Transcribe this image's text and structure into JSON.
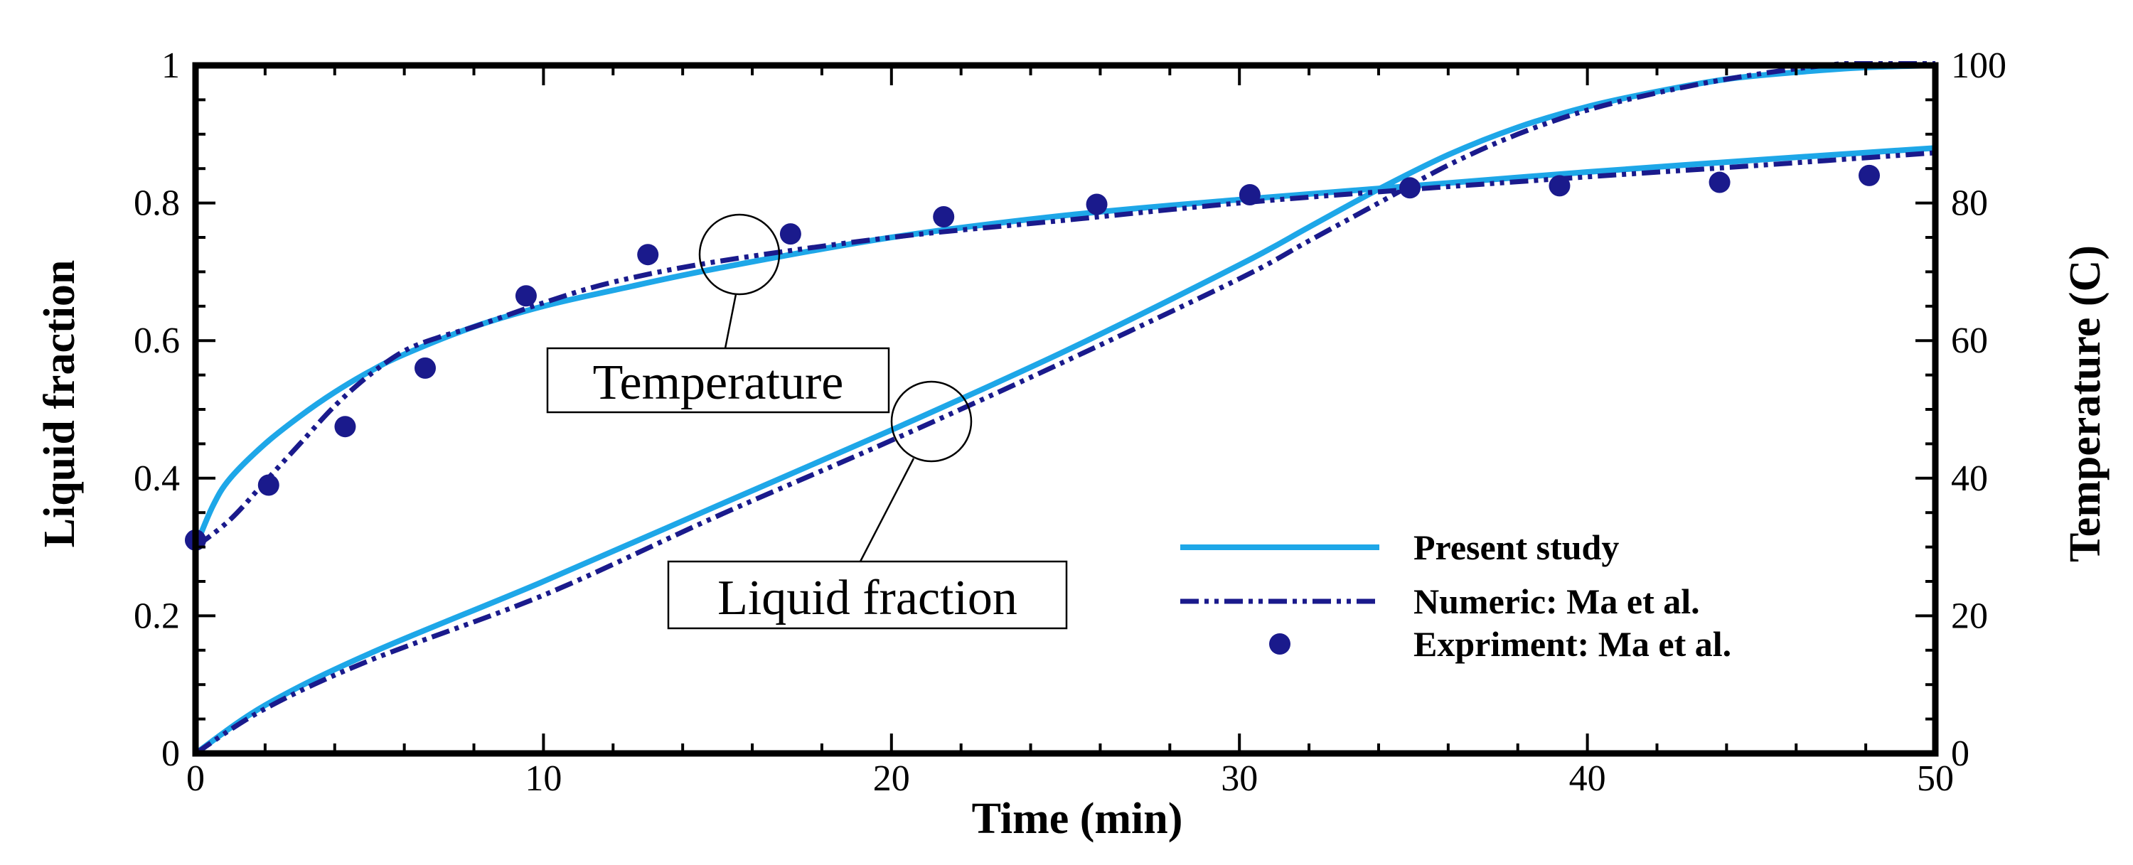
{
  "chart_data": {
    "type": "line",
    "xlabel": "Time (min)",
    "ylabel": "Liquid fraction",
    "y2label": "Temperature (C)",
    "xlim": [
      0,
      50
    ],
    "ylim": [
      0,
      1
    ],
    "y2lim": [
      0,
      100
    ],
    "x_ticks": [
      "0",
      "10",
      "20",
      "30",
      "40",
      "50"
    ],
    "y_ticks": [
      "0",
      "0.2",
      "0.4",
      "0.6",
      "0.8",
      "1"
    ],
    "y2_ticks": [
      "0",
      "20",
      "40",
      "60",
      "80",
      "100"
    ],
    "legend_position": "bottom-right",
    "colors": {
      "present": "#1ea7e8",
      "numeric": "#1a1a8c",
      "experiment": "#1a1a8c",
      "axis": "#000000"
    },
    "legend": [
      {
        "key": "present",
        "label": "Present study",
        "style": "solid line"
      },
      {
        "key": "numeric",
        "label": "Numeric: Ma et al.",
        "style": "dash-dot line"
      },
      {
        "key": "experiment",
        "label": "Expriment: Ma et al.",
        "style": "markers"
      }
    ],
    "annotations": [
      {
        "key": "temperature",
        "text": "Temperature",
        "points_to": {
          "x": 15.6,
          "y": 0.727
        }
      },
      {
        "key": "liquid_fraction",
        "text": "Liquid fraction",
        "points_to": {
          "x": 21.0,
          "y": 0.485
        }
      }
    ],
    "series": [
      {
        "name": "Present study - Liquid fraction",
        "key": "present",
        "axis": "left",
        "x": [
          0,
          2,
          5,
          10,
          15,
          20,
          25,
          30,
          32,
          34,
          36,
          38,
          40,
          42,
          44,
          46,
          48,
          50
        ],
        "y": [
          0,
          0.07,
          0.145,
          0.25,
          0.36,
          0.47,
          0.585,
          0.71,
          0.765,
          0.82,
          0.87,
          0.91,
          0.94,
          0.962,
          0.98,
          0.99,
          0.997,
          1.0
        ]
      },
      {
        "name": "Numeric: Ma et al. - Liquid fraction",
        "key": "numeric",
        "axis": "left",
        "x": [
          0,
          2,
          5,
          10,
          15,
          20,
          25,
          30,
          32,
          34,
          36,
          38,
          40,
          42,
          44,
          46,
          48,
          50
        ],
        "y": [
          0,
          0.065,
          0.135,
          0.23,
          0.345,
          0.455,
          0.57,
          0.69,
          0.745,
          0.8,
          0.855,
          0.9,
          0.935,
          0.96,
          0.98,
          0.995,
          1.005,
          1.005
        ]
      },
      {
        "name": "Present study - Temperature",
        "key": "present",
        "axis": "right",
        "x": [
          0,
          0.5,
          1,
          2,
          3,
          4,
          5,
          6,
          8,
          10,
          12,
          15,
          20,
          25,
          30,
          35,
          40,
          45,
          50
        ],
        "y": [
          30,
          36,
          40,
          45,
          49,
          52.5,
          55.5,
          58,
          62,
          65,
          67.3,
          70.5,
          75,
          78.2,
          80.5,
          82.5,
          84.5,
          86.3,
          88
        ]
      },
      {
        "name": "Numeric: Ma et al. - Temperature",
        "key": "numeric",
        "axis": "right",
        "x": [
          0,
          1,
          2,
          3,
          4,
          5,
          6,
          7,
          8,
          10,
          12,
          15,
          20,
          25,
          30,
          35,
          40,
          45,
          50
        ],
        "y": [
          30,
          34,
          39.5,
          45,
          50.5,
          55,
          58.5,
          60.5,
          62,
          65.5,
          68.5,
          71.5,
          75,
          77.5,
          80,
          82,
          83.8,
          85.5,
          87.3
        ]
      },
      {
        "name": "Expriment: Ma et al. - Temperature",
        "key": "experiment",
        "axis": "right",
        "markers_only": true,
        "x": [
          0,
          2.1,
          4.3,
          6.6,
          9.5,
          13.0,
          17.1,
          21.5,
          25.9,
          30.3,
          34.9,
          39.2,
          43.8,
          48.1
        ],
        "y": [
          31,
          39,
          47.5,
          56,
          66.5,
          72.5,
          75.5,
          78,
          79.8,
          81.2,
          82.2,
          82.5,
          83,
          84
        ]
      }
    ]
  }
}
